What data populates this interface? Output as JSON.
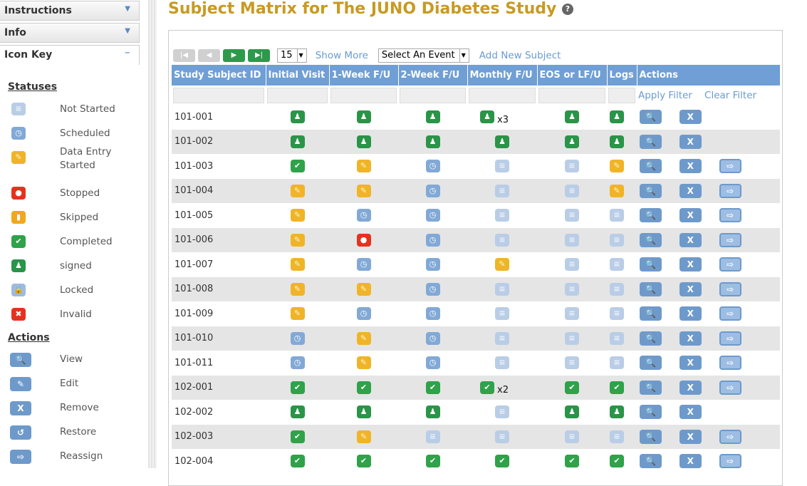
{
  "sidebar": {
    "panels": [
      {
        "label": "Instructions",
        "toggle": "▼"
      },
      {
        "label": "Info",
        "toggle": "▼"
      },
      {
        "label": "Icon Key",
        "toggle": "−"
      }
    ],
    "statuses_heading": "Statuses",
    "statuses": [
      {
        "code": "ns",
        "glyph": "≡",
        "label": "Not Started"
      },
      {
        "code": "sc",
        "glyph": "◷",
        "label": "Scheduled"
      },
      {
        "code": "de",
        "glyph": "✎",
        "label": "Data Entry Started"
      },
      {
        "code": "st",
        "glyph": "●",
        "label": "Stopped"
      },
      {
        "code": "sk",
        "glyph": "▮",
        "label": "Skipped"
      },
      {
        "code": "co",
        "glyph": "✔",
        "label": "Completed"
      },
      {
        "code": "si",
        "glyph": "♟",
        "label": "signed"
      },
      {
        "code": "lo",
        "glyph": "🔒",
        "label": "Locked"
      },
      {
        "code": "in",
        "glyph": "✖",
        "label": "Invalid"
      }
    ],
    "actions_heading": "Actions",
    "actions": [
      {
        "glyph": "🔍",
        "label": "View"
      },
      {
        "glyph": "✎",
        "label": "Edit"
      },
      {
        "glyph": "X",
        "label": "Remove"
      },
      {
        "glyph": "↺",
        "label": "Restore"
      },
      {
        "glyph": "⇨",
        "label": "Reassign"
      }
    ]
  },
  "page": {
    "title": "Subject Matrix for The JUNO Diabetes Study",
    "help": "?"
  },
  "toolbar": {
    "page_size": "15",
    "show_more": "Show More",
    "event_select": "Select An Event",
    "add_subject": "Add New Subject"
  },
  "table": {
    "columns": [
      "Study Subject ID",
      "Initial Visit",
      "1-Week F/U",
      "2-Week F/U",
      "Monthly F/U",
      "EOS or LF/U",
      "Logs",
      "Actions"
    ],
    "apply_filter": "Apply Filter",
    "clear_filter": "Clear Filter",
    "rows": [
      {
        "id": "101-001",
        "s": [
          "si",
          "si",
          "si",
          "si",
          "si",
          "si"
        ],
        "mult": {
          "3": "x3"
        },
        "reassign": false
      },
      {
        "id": "101-002",
        "s": [
          "si",
          "si",
          "si",
          "si",
          "si",
          "si"
        ],
        "reassign": false
      },
      {
        "id": "101-003",
        "s": [
          "co",
          "de",
          "sc",
          "ns",
          "ns",
          "de"
        ],
        "reassign": true
      },
      {
        "id": "101-004",
        "s": [
          "de",
          "de",
          "sc",
          "ns",
          "ns",
          "de"
        ],
        "reassign": true
      },
      {
        "id": "101-005",
        "s": [
          "de",
          "sc",
          "sc",
          "ns",
          "ns",
          "ns"
        ],
        "reassign": true
      },
      {
        "id": "101-006",
        "s": [
          "de",
          "st",
          "sc",
          "ns",
          "ns",
          "ns"
        ],
        "reassign": true
      },
      {
        "id": "101-007",
        "s": [
          "de",
          "sc",
          "sc",
          "de",
          "ns",
          "ns"
        ],
        "reassign": true
      },
      {
        "id": "101-008",
        "s": [
          "de",
          "de",
          "sc",
          "ns",
          "ns",
          "ns"
        ],
        "reassign": true
      },
      {
        "id": "101-009",
        "s": [
          "de",
          "sc",
          "sc",
          "ns",
          "ns",
          "ns"
        ],
        "reassign": true
      },
      {
        "id": "101-010",
        "s": [
          "sc",
          "de",
          "sc",
          "ns",
          "ns",
          "ns"
        ],
        "reassign": true
      },
      {
        "id": "101-011",
        "s": [
          "sc",
          "de",
          "sc",
          "ns",
          "ns",
          "ns"
        ],
        "reassign": true
      },
      {
        "id": "102-001",
        "s": [
          "co",
          "co",
          "co",
          "co",
          "co",
          "co"
        ],
        "mult": {
          "3": "x2"
        },
        "reassign": true
      },
      {
        "id": "102-002",
        "s": [
          "si",
          "si",
          "si",
          "ns",
          "si",
          "si"
        ],
        "reassign": false
      },
      {
        "id": "102-003",
        "s": [
          "co",
          "de",
          "ns",
          "ns",
          "ns",
          "ns"
        ],
        "reassign": true
      },
      {
        "id": "102-004",
        "s": [
          "co",
          "co",
          "co",
          "co",
          "co",
          "co"
        ],
        "reassign": true
      }
    ]
  }
}
